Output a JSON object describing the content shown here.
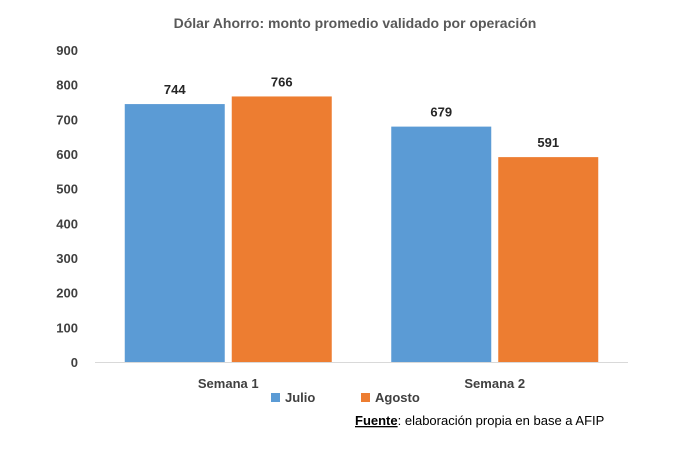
{
  "chart_data": {
    "type": "bar",
    "title": "Dólar Ahorro: monto promedio validado por operación",
    "categories": [
      "Semana 1",
      "Semana 2"
    ],
    "series": [
      {
        "name": "Julio",
        "values": [
          744,
          679
        ],
        "color": "#5B9BD5"
      },
      {
        "name": "Agosto",
        "values": [
          766,
          591
        ],
        "color": "#ED7D31"
      }
    ],
    "ylim": [
      0,
      900
    ],
    "yticks": [
      0,
      100,
      200,
      300,
      400,
      500,
      600,
      700,
      800,
      900
    ],
    "xlabel": "",
    "ylabel": "",
    "grid": false,
    "legend_position": "bottom",
    "data_labels": true
  },
  "source": {
    "label": "Fuente",
    "text": ": elaboración propia en base a AFIP"
  },
  "colors": {
    "axis": "#D9D9D9",
    "text": "#404040"
  }
}
